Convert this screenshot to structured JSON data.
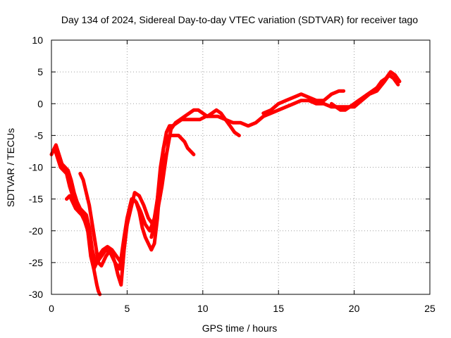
{
  "chart_data": {
    "type": "scatter",
    "title": "Day 134 of 2024, Sidereal Day-to-day VTEC variation (SDTVAR) for receiver tago",
    "xlabel": "GPS time / hours",
    "ylabel": "SDTVAR / TECUs",
    "xlim": [
      0,
      25
    ],
    "ylim": [
      -30,
      10
    ],
    "xticks": [
      "0",
      "5",
      "10",
      "15",
      "20",
      "25"
    ],
    "yticks": [
      "10",
      "5",
      "0",
      "-5",
      "-10",
      "-15",
      "-20",
      "-25",
      "-30"
    ],
    "grid": true,
    "marker_color": "#ff0000",
    "series": [
      {
        "x": [
          0,
          0.2,
          0.4,
          0.6,
          0.8,
          1.0,
          1.2,
          1.4,
          1.6,
          1.8,
          2.0,
          2.2,
          2.4,
          2.6,
          2.8,
          3.0,
          3.3,
          3.6,
          3.9,
          4.2,
          4.5,
          4.8,
          5.0,
          5.3,
          5.6,
          5.9,
          6.2,
          6.5,
          6.8,
          7.0,
          7.2,
          7.4,
          7.6,
          7.8,
          8.0,
          8.3,
          8.6,
          9.0,
          9.4,
          9.8,
          10.2,
          10.6,
          11.0,
          11.5,
          12.0,
          12.5,
          13.0,
          13.5,
          14.0,
          14.5,
          15.0,
          15.5,
          16.0,
          16.5,
          17.0,
          17.5,
          18.0,
          18.5,
          19.0,
          19.5,
          20.0,
          20.5,
          21.0,
          21.5,
          22.0,
          22.3,
          22.6,
          22.9
        ],
        "y": [
          -8,
          -7,
          -8.5,
          -10,
          -10.5,
          -11,
          -13,
          -14.5,
          -16,
          -17,
          -17.5,
          -18,
          -20,
          -24,
          -26,
          -25,
          -24,
          -23,
          -23.5,
          -25,
          -26,
          -21,
          -18,
          -15,
          -15.5,
          -17,
          -19,
          -20,
          -18,
          -15,
          -11,
          -7,
          -4.5,
          -3.5,
          -3.5,
          -3,
          -2.5,
          -2.5,
          -2.5,
          -2.5,
          -2,
          -2,
          -2,
          -2.5,
          -3,
          -3,
          -3.5,
          -3,
          -2,
          -1.5,
          -1,
          -0.5,
          0,
          0.5,
          0.5,
          0,
          0,
          -0.5,
          -0.5,
          -0.5,
          -0.5,
          0.5,
          1.5,
          2,
          3.5,
          4.5,
          4,
          3
        ]
      },
      {
        "x": [
          0.1,
          0.3,
          0.5,
          0.7,
          0.9,
          1.1,
          1.3,
          1.5,
          1.7,
          1.9,
          2.1,
          2.3,
          2.5,
          2.7,
          2.9,
          3.1,
          3.4,
          3.7,
          4.0,
          4.3,
          4.6,
          4.9,
          5.2,
          5.5,
          5.8,
          6.1,
          6.4,
          6.7,
          7.0,
          7.3,
          7.6,
          7.9,
          8.2,
          8.5,
          8.8,
          9.1,
          9.4,
          9.7,
          10.0,
          10.3,
          10.6,
          10.9,
          11.2,
          11.5,
          11.8,
          12.1,
          12.4
        ],
        "y": [
          -7.5,
          -6.5,
          -8,
          -9.5,
          -10,
          -10.5,
          -12,
          -14,
          -15.5,
          -16.5,
          -17,
          -17.5,
          -19.5,
          -23,
          -25,
          -24,
          -23,
          -22.5,
          -23,
          -24,
          -25,
          -20,
          -17,
          -14,
          -14.5,
          -16,
          -18,
          -19,
          -17,
          -13,
          -8,
          -4,
          -3,
          -2.5,
          -2,
          -1.5,
          -1,
          -1,
          -1.5,
          -2,
          -1.5,
          -1,
          -1.5,
          -2.5,
          -3.5,
          -4.5,
          -5
        ]
      },
      {
        "x": [
          1.0,
          1.2,
          1.4,
          1.6,
          1.8,
          2.0,
          2.2,
          2.4,
          2.6,
          2.8,
          3.0,
          3.1,
          3.2
        ],
        "y": [
          -15,
          -14.5,
          -15.5,
          -16.5,
          -17,
          -17.5,
          -18.5,
          -20,
          -23,
          -26,
          -28.5,
          -29.5,
          -30
        ]
      },
      {
        "x": [
          1.9,
          2.1,
          2.3,
          2.5,
          2.7,
          2.9,
          3.1,
          3.3,
          3.6,
          3.9,
          4.2,
          4.4,
          4.6,
          4.8,
          5.0,
          5.2,
          5.4,
          5.6,
          5.8,
          6.0,
          6.2,
          6.4,
          6.6,
          6.8,
          7.0,
          7.2,
          7.4
        ],
        "y": [
          -11,
          -12,
          -14,
          -16,
          -19,
          -22,
          -25,
          -25.5,
          -24,
          -23,
          -25,
          -27,
          -28.5,
          -23,
          -19,
          -16,
          -15,
          -15.5,
          -17,
          -19.5,
          -21,
          -22,
          -23,
          -22,
          -18,
          -12,
          -8
        ]
      },
      {
        "x": [
          6.6,
          6.8,
          7.0,
          7.2,
          7.4,
          7.6,
          7.8,
          8.0,
          8.2,
          8.4,
          8.6,
          8.8,
          9.0,
          9.2,
          9.4
        ],
        "y": [
          -21,
          -19,
          -15,
          -10,
          -7,
          -5.5,
          -5,
          -5,
          -5,
          -5,
          -5.5,
          -6,
          -7,
          -7.5,
          -8
        ]
      },
      {
        "x": [
          18.5,
          18.8,
          19.1,
          19.4,
          19.7,
          20.0,
          20.3,
          20.6,
          20.9,
          21.2,
          21.5,
          21.8,
          22.1,
          22.4,
          22.7,
          23.0
        ],
        "y": [
          0,
          -0.5,
          -1,
          -1,
          -0.5,
          0,
          0.5,
          1,
          1.5,
          2,
          2.5,
          3.5,
          4,
          5,
          4.5,
          3.5
        ]
      },
      {
        "x": [
          14.0,
          14.5,
          15.0,
          15.5,
          16.0,
          16.5,
          17.0,
          17.5,
          18.0,
          18.5,
          19.0,
          19.3
        ],
        "y": [
          -1.5,
          -1,
          0,
          0.5,
          1,
          1.5,
          1,
          0.5,
          0.5,
          1.5,
          2,
          2
        ]
      }
    ]
  }
}
